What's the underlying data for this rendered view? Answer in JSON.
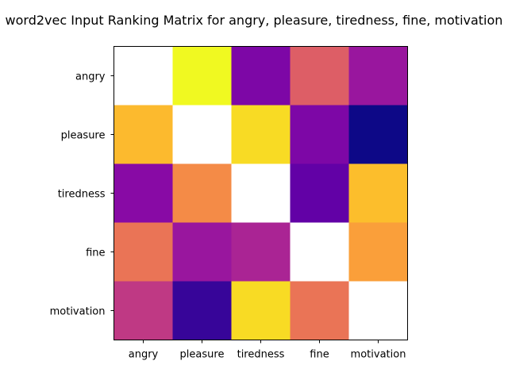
{
  "chart_data": {
    "type": "heatmap",
    "title": "word2vec Input Ranking Matrix for angry, pleasure, tiredness, fine, motivation",
    "xlabel": "",
    "ylabel": "",
    "x_categories": [
      "angry",
      "pleasure",
      "tiredness",
      "fine",
      "motivation"
    ],
    "y_categories": [
      "angry",
      "pleasure",
      "tiredness",
      "fine",
      "motivation"
    ],
    "colormap": "plasma",
    "value_range": [
      0,
      1
    ],
    "diagonal": "blank",
    "grid": false,
    "legend": "none",
    "values": [
      [
        null,
        1.0,
        0.25,
        0.58,
        0.33
      ],
      [
        0.85,
        null,
        0.93,
        0.25,
        0.0
      ],
      [
        0.28,
        0.72,
        null,
        0.18,
        0.86
      ],
      [
        0.65,
        0.33,
        0.38,
        null,
        0.78
      ],
      [
        0.45,
        0.08,
        0.93,
        0.65,
        null
      ]
    ],
    "colors": {
      "diagonal": "#ffffff",
      "axes": "#000000"
    }
  }
}
